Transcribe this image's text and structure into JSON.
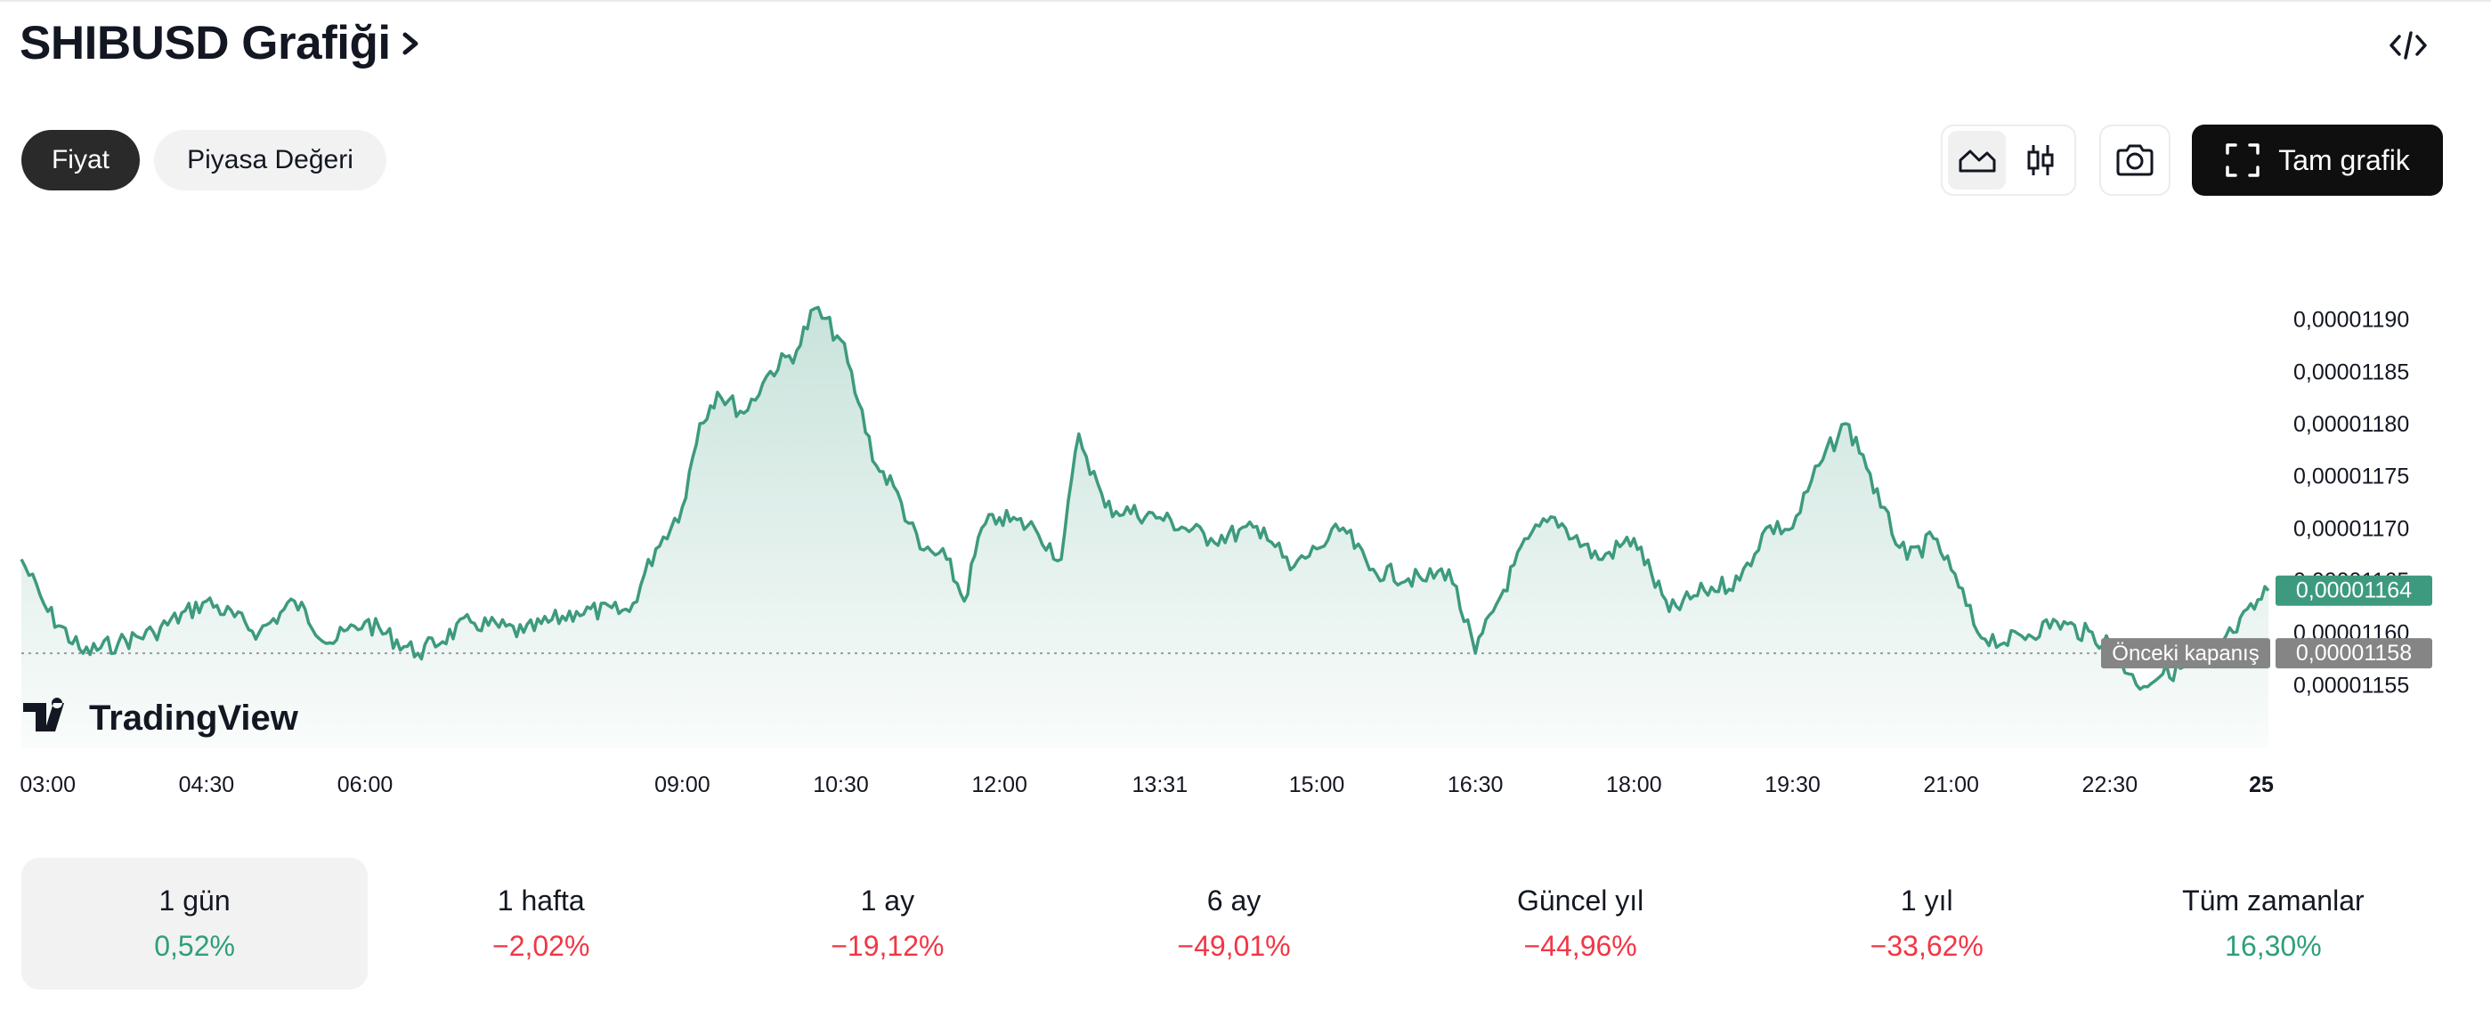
{
  "header": {
    "title": "SHIBUSD Grafiği"
  },
  "tabs": [
    {
      "label": "Fiyat",
      "active": true
    },
    {
      "label": "Piyasa Değeri",
      "active": false
    }
  ],
  "toolbar": {
    "chart_types": [
      "area-chart-icon",
      "candles-icon"
    ],
    "selected_chart_type": "area-chart-icon",
    "fullscreen_label": "Tam grafik"
  },
  "branding": {
    "logo_text": "TradingView"
  },
  "colors": {
    "line": "#3d9a7e",
    "positive": "#2e9f7a",
    "negative": "#f23645",
    "prev_close_tag": "#858585"
  },
  "chart_data": {
    "type": "area",
    "symbol": "SHIBUSD",
    "y_ticks": [
      "0,00001190",
      "0,00001185",
      "0,00001180",
      "0,00001175",
      "0,00001170",
      "0,00001165",
      "0,00001160",
      "0,00001155"
    ],
    "y_range": [
      1.15e-05,
      1.195e-05
    ],
    "x_ticks": [
      "03:00",
      "04:30",
      "06:00",
      "09:00",
      "10:30",
      "12:00",
      "13:31",
      "15:00",
      "16:30",
      "18:00",
      "19:30",
      "21:00",
      "22:30",
      "25"
    ],
    "last_price_label": "0,00001164",
    "last_price": 1.164e-05,
    "previous_close_text": "Önceki kapanış",
    "previous_close_label": "0,00001158",
    "previous_close": 1.158e-05,
    "series": [
      {
        "x": "02:45",
        "y": 1.167e-05
      },
      {
        "x": "03:00",
        "y": 1.162e-05
      },
      {
        "x": "03:20",
        "y": 1.158e-05
      },
      {
        "x": "03:40",
        "y": 1.159e-05
      },
      {
        "x": "04:00",
        "y": 1.16e-05
      },
      {
        "x": "04:30",
        "y": 1.163e-05
      },
      {
        "x": "05:00",
        "y": 1.16e-05
      },
      {
        "x": "05:20",
        "y": 1.163e-05
      },
      {
        "x": "05:40",
        "y": 1.159e-05
      },
      {
        "x": "06:00",
        "y": 1.161e-05
      },
      {
        "x": "06:30",
        "y": 1.158e-05
      },
      {
        "x": "07:00",
        "y": 1.161e-05
      },
      {
        "x": "07:30",
        "y": 1.16e-05
      },
      {
        "x": "08:00",
        "y": 1.162e-05
      },
      {
        "x": "08:30",
        "y": 1.162e-05
      },
      {
        "x": "08:45",
        "y": 1.168e-05
      },
      {
        "x": "09:00",
        "y": 1.172e-05
      },
      {
        "x": "09:10",
        "y": 1.18e-05
      },
      {
        "x": "09:20",
        "y": 1.183e-05
      },
      {
        "x": "09:35",
        "y": 1.181e-05
      },
      {
        "x": "09:50",
        "y": 1.185e-05
      },
      {
        "x": "10:05",
        "y": 1.187e-05
      },
      {
        "x": "10:15",
        "y": 1.191e-05
      },
      {
        "x": "10:30",
        "y": 1.188e-05
      },
      {
        "x": "10:40",
        "y": 1.182e-05
      },
      {
        "x": "10:50",
        "y": 1.176e-05
      },
      {
        "x": "11:00",
        "y": 1.174e-05
      },
      {
        "x": "11:15",
        "y": 1.168e-05
      },
      {
        "x": "11:30",
        "y": 1.167e-05
      },
      {
        "x": "11:40",
        "y": 1.163e-05
      },
      {
        "x": "11:50",
        "y": 1.17e-05
      },
      {
        "x": "12:00",
        "y": 1.171e-05
      },
      {
        "x": "12:20",
        "y": 1.17e-05
      },
      {
        "x": "12:35",
        "y": 1.167e-05
      },
      {
        "x": "12:45",
        "y": 1.179e-05
      },
      {
        "x": "13:00",
        "y": 1.172e-05
      },
      {
        "x": "13:31",
        "y": 1.171e-05
      },
      {
        "x": "14:00",
        "y": 1.169e-05
      },
      {
        "x": "14:30",
        "y": 1.17e-05
      },
      {
        "x": "14:45",
        "y": 1.166e-05
      },
      {
        "x": "15:00",
        "y": 1.168e-05
      },
      {
        "x": "15:15",
        "y": 1.17e-05
      },
      {
        "x": "15:30",
        "y": 1.166e-05
      },
      {
        "x": "16:00",
        "y": 1.165e-05
      },
      {
        "x": "16:15",
        "y": 1.166e-05
      },
      {
        "x": "16:30",
        "y": 1.158e-05
      },
      {
        "x": "16:40",
        "y": 1.162e-05
      },
      {
        "x": "17:00",
        "y": 1.169e-05
      },
      {
        "x": "17:15",
        "y": 1.171e-05
      },
      {
        "x": "17:40",
        "y": 1.167e-05
      },
      {
        "x": "18:00",
        "y": 1.169e-05
      },
      {
        "x": "18:20",
        "y": 1.162e-05
      },
      {
        "x": "18:40",
        "y": 1.164e-05
      },
      {
        "x": "19:00",
        "y": 1.165e-05
      },
      {
        "x": "19:15",
        "y": 1.17e-05
      },
      {
        "x": "19:30",
        "y": 1.17e-05
      },
      {
        "x": "19:45",
        "y": 1.176e-05
      },
      {
        "x": "20:00",
        "y": 1.18e-05
      },
      {
        "x": "20:10",
        "y": 1.177e-05
      },
      {
        "x": "20:20",
        "y": 1.172e-05
      },
      {
        "x": "20:35",
        "y": 1.167e-05
      },
      {
        "x": "20:50",
        "y": 1.169e-05
      },
      {
        "x": "21:00",
        "y": 1.166e-05
      },
      {
        "x": "21:15",
        "y": 1.16e-05
      },
      {
        "x": "21:30",
        "y": 1.159e-05
      },
      {
        "x": "22:00",
        "y": 1.161e-05
      },
      {
        "x": "22:30",
        "y": 1.159e-05
      },
      {
        "x": "22:45",
        "y": 1.155e-05
      },
      {
        "x": "23:00",
        "y": 1.156e-05
      },
      {
        "x": "23:20",
        "y": 1.157e-05
      },
      {
        "x": "23:40",
        "y": 1.16e-05
      },
      {
        "x": "24:00",
        "y": 1.164e-05
      }
    ]
  },
  "periods": [
    {
      "label": "1 gün",
      "value": "0,52%",
      "sign": "pos",
      "active": true
    },
    {
      "label": "1 hafta",
      "value": "−2,02%",
      "sign": "neg",
      "active": false
    },
    {
      "label": "1 ay",
      "value": "−19,12%",
      "sign": "neg",
      "active": false
    },
    {
      "label": "6 ay",
      "value": "−49,01%",
      "sign": "neg",
      "active": false
    },
    {
      "label": "Güncel yıl",
      "value": "−44,96%",
      "sign": "neg",
      "active": false
    },
    {
      "label": "1 yıl",
      "value": "−33,62%",
      "sign": "neg",
      "active": false
    },
    {
      "label": "Tüm zamanlar",
      "value": "16,30%",
      "sign": "pos",
      "active": false
    }
  ]
}
